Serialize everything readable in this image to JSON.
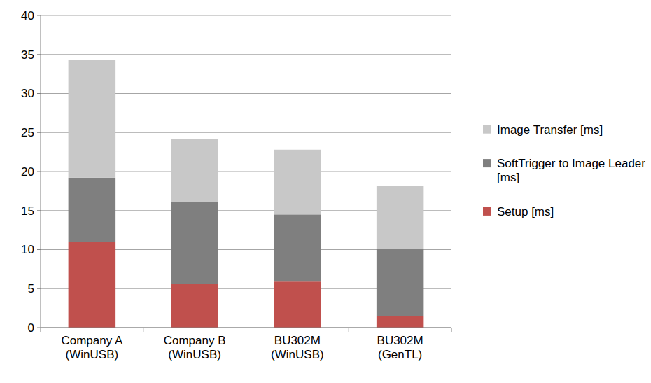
{
  "chart_data": {
    "type": "bar",
    "stacked": true,
    "grid": true,
    "legend": "right",
    "categories": [
      "Company A (WinUSB)",
      "Company B (WinUSB)",
      "BU302M (WinUSB)",
      "BU302M (GenTL)"
    ],
    "series": [
      {
        "name": "Setup [ms]",
        "color": "#c0504d",
        "values": [
          11.0,
          5.6,
          5.9,
          1.5
        ]
      },
      {
        "name": "SoftTrigger to Image Leader [ms]",
        "color": "#7f7f7f",
        "values": [
          8.2,
          10.5,
          8.6,
          8.6
        ]
      },
      {
        "name": "Image Transfer [ms]",
        "color": "#c8c8c8",
        "values": [
          15.1,
          8.1,
          8.3,
          8.1
        ]
      }
    ],
    "ylim": [
      0,
      40
    ],
    "yticks": [
      0,
      5,
      10,
      15,
      20,
      25,
      30,
      35,
      40
    ]
  }
}
